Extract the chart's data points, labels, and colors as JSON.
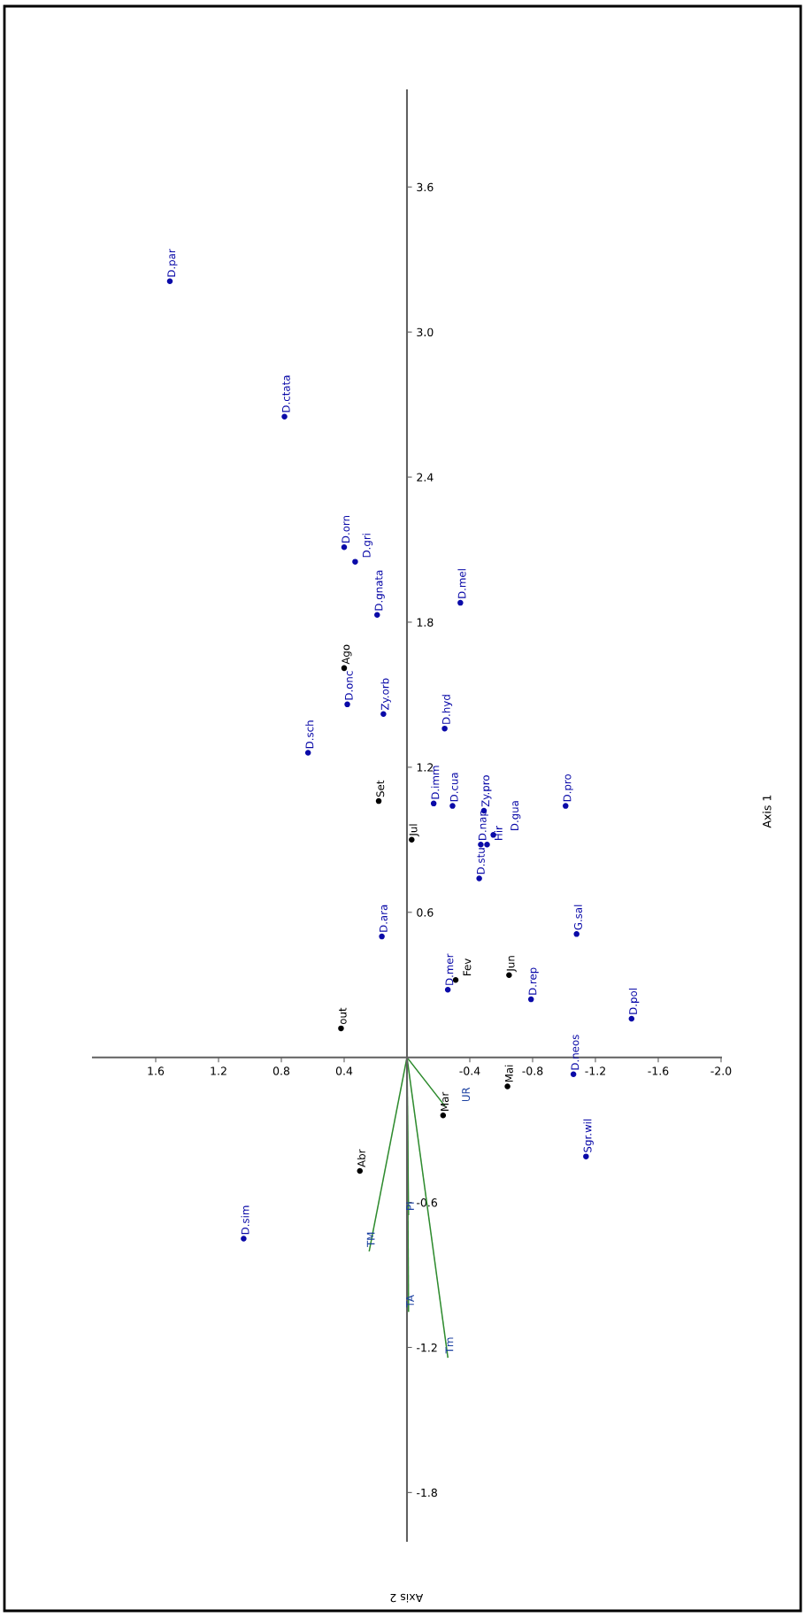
{
  "chart_data": {
    "type": "scatter",
    "xlabel": "Axis 2",
    "ylabel": "Axis 1",
    "xlim": [
      2.0,
      -2.0
    ],
    "ylim": [
      -2.0,
      4.0
    ],
    "xticks": [
      1.6,
      1.2,
      0.8,
      0.4,
      -0.4,
      -0.8,
      -1.2,
      -1.6,
      {
        "value": -2,
        "label": "-2.0"
      }
    ],
    "yticks": [
      -1.8,
      -1.2,
      -0.6,
      0.6,
      1.2,
      1.8,
      2.4,
      {
        "value": 3,
        "label": "3.0"
      },
      3.6
    ],
    "grid": false,
    "marker": "circle",
    "series": [
      {
        "color": "#0a0aa8",
        "x": [
          1.51,
          0.78,
          0.4,
          0.33,
          0.19,
          -0.34,
          0.38,
          0.15,
          0.63,
          -0.24,
          -0.17,
          -0.29,
          -0.49,
          -1.01,
          -0.47,
          -0.51,
          -0.55,
          -0.46,
          0.16,
          -1.08,
          -0.26,
          -0.79,
          -1.43,
          -1.06,
          -1.14,
          1.04
        ],
        "values": [
          3.21,
          2.65,
          2.11,
          2.05,
          1.83,
          1.88,
          1.46,
          1.42,
          1.26,
          1.36,
          1.05,
          1.04,
          1.02,
          1.04,
          0.88,
          0.88,
          0.92,
          0.74,
          0.5,
          0.51,
          0.28,
          0.24,
          0.16,
          -0.07,
          -0.41,
          -0.75
        ],
        "value_labels": [
          "D.par",
          "D.ctata",
          "D.orn",
          "D.gri",
          "D.gnata",
          "D.mel",
          "D.onc",
          "Zy.orb",
          "D.sch",
          "D.hyd",
          "D.imm",
          "D.cua",
          "Zy.pro",
          "D.pro",
          "D.nap",
          "Hir",
          "D.gua",
          "D.stu",
          "D.ara",
          "G.sal",
          "D.mer",
          "D.rep",
          "D.pol",
          "D.neos",
          "Sgr.wil",
          "D.sim"
        ]
      },
      {
        "color": "#000000",
        "x": [
          0.4,
          0.18,
          -0.03,
          -0.31,
          -0.65,
          0.42,
          -0.64,
          -0.23,
          0.3
        ],
        "values": [
          1.61,
          1.06,
          0.9,
          0.32,
          0.34,
          0.12,
          -0.12,
          -0.24,
          -0.47
        ],
        "value_labels": [
          "Ago",
          "Set",
          "Jul",
          "Fev",
          "Jun",
          "out",
          "Mai",
          "Mar",
          "Abr"
        ]
      },
      {
        "type": "line",
        "color": "#2e8b2e",
        "marker": "none",
        "x": [
          0,
          -0.24
        ],
        "values": [
          0,
          -0.2
        ],
        "value_labels": [
          null,
          "UR"
        ]
      },
      {
        "type": "line",
        "color": "#2e8b2e",
        "marker": "none",
        "x": [
          0,
          0.24
        ],
        "values": [
          0,
          -0.8
        ],
        "value_labels": [
          null,
          "TM"
        ]
      },
      {
        "type": "line",
        "color": "#2e8b2e",
        "marker": "none",
        "x": [
          0,
          -0.01
        ],
        "values": [
          0,
          -0.65
        ],
        "value_labels": [
          null,
          "PI"
        ]
      },
      {
        "type": "line",
        "color": "#2e8b2e",
        "marker": "none",
        "x": [
          0,
          -0.01
        ],
        "values": [
          0,
          -1.05
        ],
        "value_labels": [
          null,
          "TA"
        ]
      },
      {
        "type": "line",
        "color": "#2e8b2e",
        "marker": "none",
        "x": [
          0,
          -0.26
        ],
        "values": [
          0,
          -1.24
        ],
        "value_labels": [
          null,
          "Tm"
        ]
      }
    ]
  }
}
